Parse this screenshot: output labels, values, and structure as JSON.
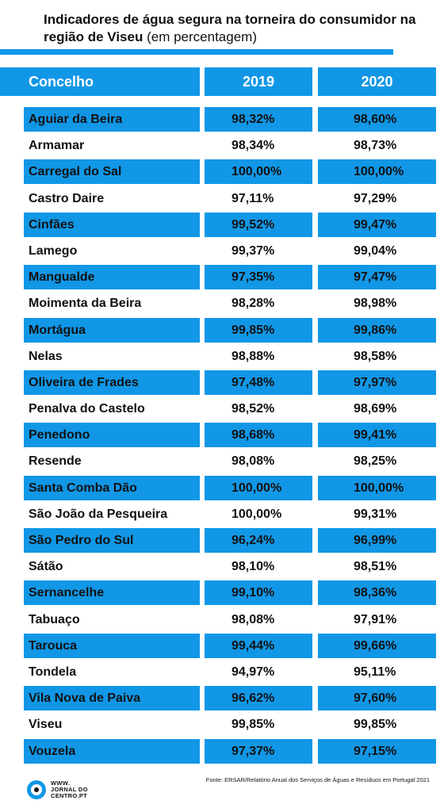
{
  "title": {
    "bold": "Indicadores de água segura na torneira do consumidor na região de Viseu",
    "normal": "(em percentagem)"
  },
  "source": "Fonte: ERSAR/Relatório Anual dos Serviços de Águas e Resíduos em Portugal 2021",
  "logo": {
    "line1": "WWW.",
    "line2": "JORNAL DO",
    "line3": "CENTRO.PT"
  },
  "colors": {
    "accent": "#1197e6",
    "text": "#111111",
    "background": "#ffffff"
  },
  "chart_data": {
    "type": "table",
    "columns": [
      "Concelho",
      "2019",
      "2020"
    ],
    "rows": [
      [
        "Aguiar da Beira",
        "98,32%",
        "98,60%"
      ],
      [
        "Armamar",
        "98,34%",
        "98,73%"
      ],
      [
        "Carregal do Sal",
        "100,00%",
        "100,00%"
      ],
      [
        "Castro Daire",
        "97,11%",
        "97,29%"
      ],
      [
        "Cinfães",
        "99,52%",
        "99,47%"
      ],
      [
        "Lamego",
        "99,37%",
        "99,04%"
      ],
      [
        "Mangualde",
        "97,35%",
        "97,47%"
      ],
      [
        "Moimenta da Beira",
        "98,28%",
        "98,98%"
      ],
      [
        "Mortágua",
        "99,85%",
        "99,86%"
      ],
      [
        "Nelas",
        "98,88%",
        "98,58%"
      ],
      [
        "Oliveira de Frades",
        "97,48%",
        "97,97%"
      ],
      [
        "Penalva do Castelo",
        "98,52%",
        "98,69%"
      ],
      [
        "Penedono",
        "98,68%",
        "99,41%"
      ],
      [
        "Resende",
        "98,08%",
        "98,25%"
      ],
      [
        "Santa Comba Dão",
        "100,00%",
        "100,00%"
      ],
      [
        "São João da Pesqueira",
        "100,00%",
        "99,31%"
      ],
      [
        "São Pedro do Sul",
        "96,24%",
        "96,99%"
      ],
      [
        "Sátão",
        "98,10%",
        "98,51%"
      ],
      [
        "Sernancelhe",
        "99,10%",
        "98,36%"
      ],
      [
        "Tabuaço",
        "98,08%",
        "97,91%"
      ],
      [
        "Tarouca",
        "99,44%",
        "99,66%"
      ],
      [
        "Tondela",
        "94,97%",
        "95,11%"
      ],
      [
        "Vila Nova de Paiva",
        "96,62%",
        "97,60%"
      ],
      [
        "Viseu",
        "99,85%",
        "99,85%"
      ],
      [
        "Vouzela",
        "97,37%",
        "97,15%"
      ]
    ]
  }
}
